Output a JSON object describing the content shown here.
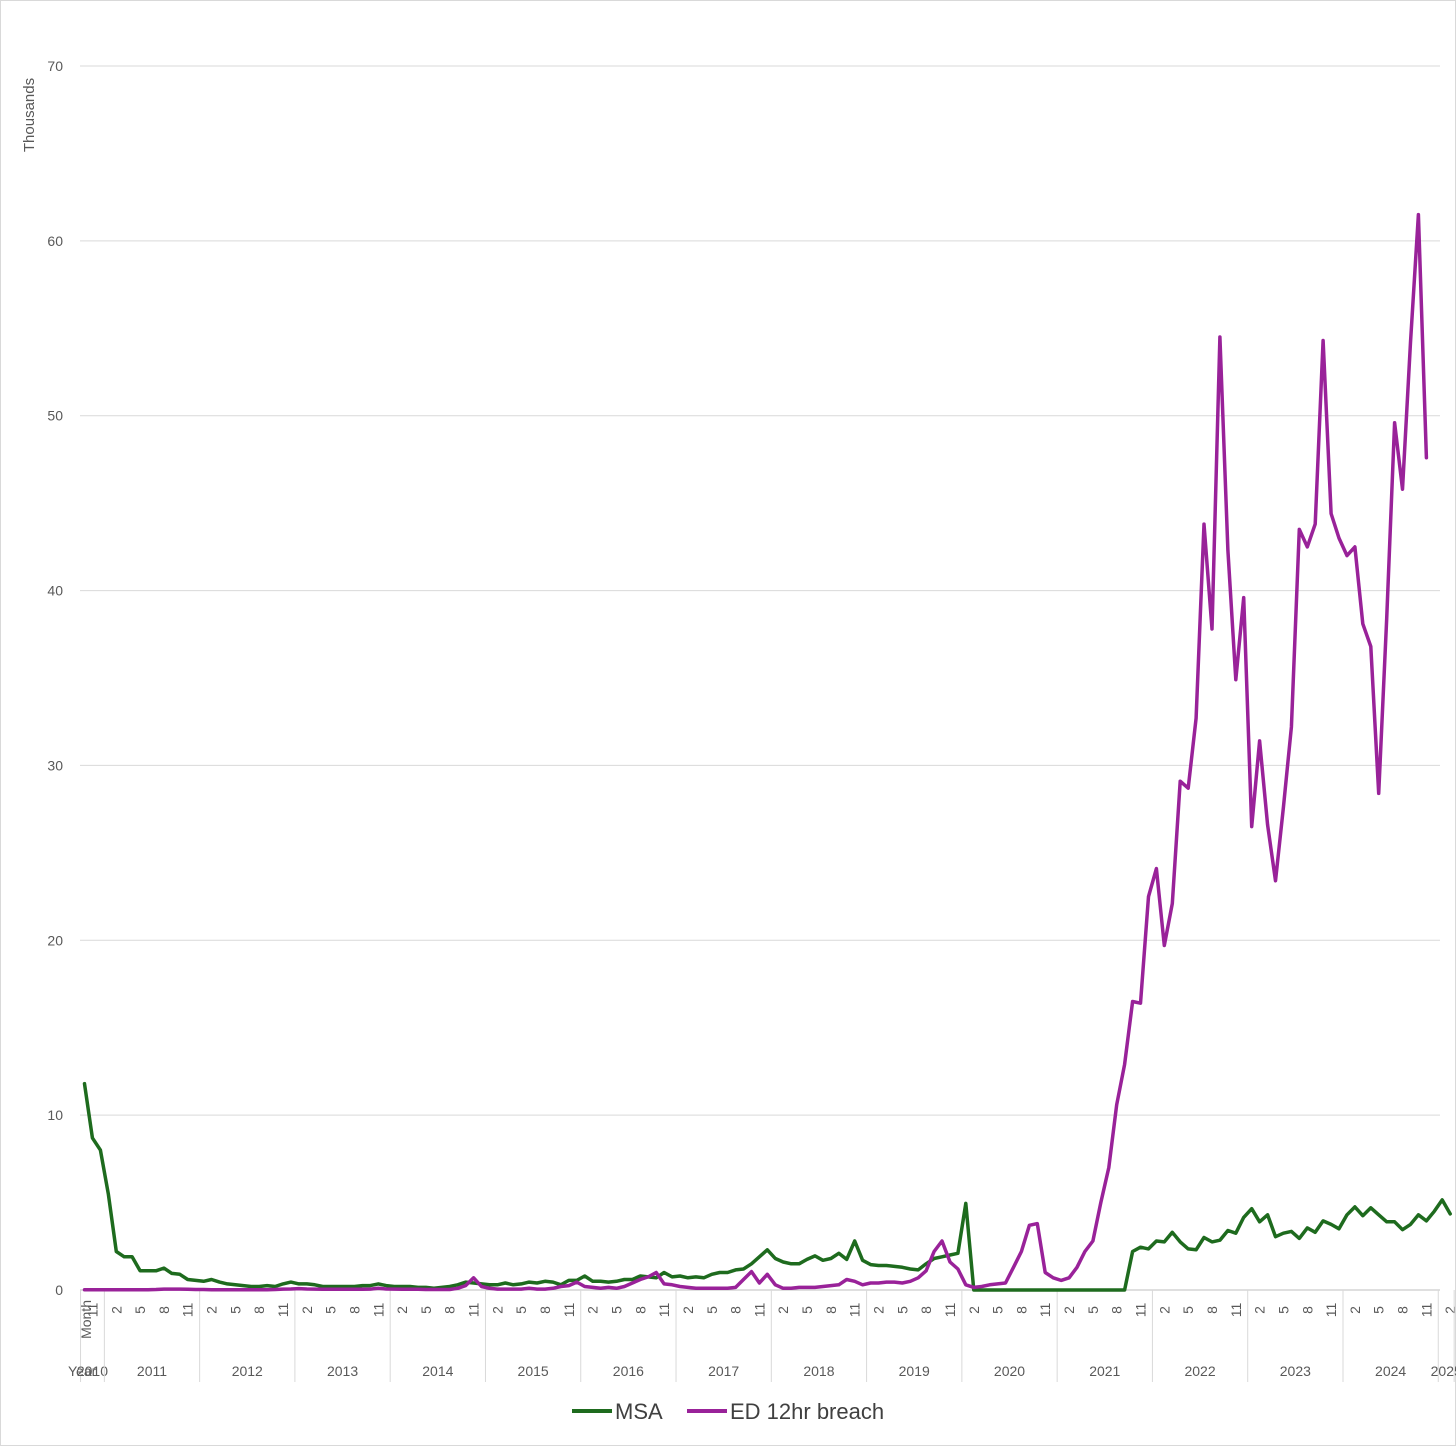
{
  "chart_data": {
    "type": "line",
    "ylabel": "Thousands",
    "ylim": [
      0,
      70
    ],
    "yticks": [
      0,
      10,
      20,
      30,
      40,
      50,
      60,
      70
    ],
    "x_axis": {
      "month_label": "Month",
      "year_label": "Year",
      "years": [
        "2010",
        "2011",
        "2012",
        "2013",
        "2014",
        "2015",
        "2016",
        "2017",
        "2018",
        "2019",
        "2020",
        "2021",
        "2022",
        "2023",
        "2024",
        "2025"
      ],
      "month_ticks": [
        "2",
        "5",
        "8",
        "11"
      ]
    },
    "x_start": "2010-10",
    "x_end": "2025-01",
    "grid": "horizontal",
    "legend_position": "bottom",
    "series": [
      {
        "name": "MSA",
        "color": "#1e6b1e",
        "values": [
          11.8,
          8.7,
          8.0,
          5.5,
          2.2,
          1.9,
          1.9,
          1.1,
          1.1,
          1.1,
          1.25,
          0.95,
          0.9,
          0.6,
          0.55,
          0.5,
          0.6,
          0.45,
          0.35,
          0.3,
          0.25,
          0.2,
          0.2,
          0.25,
          0.2,
          0.35,
          0.45,
          0.35,
          0.35,
          0.3,
          0.2,
          0.2,
          0.2,
          0.2,
          0.2,
          0.25,
          0.25,
          0.35,
          0.25,
          0.2,
          0.2,
          0.2,
          0.15,
          0.15,
          0.1,
          0.15,
          0.2,
          0.3,
          0.45,
          0.4,
          0.35,
          0.3,
          0.3,
          0.4,
          0.3,
          0.35,
          0.45,
          0.4,
          0.5,
          0.45,
          0.3,
          0.55,
          0.55,
          0.8,
          0.5,
          0.5,
          0.45,
          0.5,
          0.6,
          0.6,
          0.8,
          0.75,
          0.7,
          1.0,
          0.75,
          0.8,
          0.7,
          0.75,
          0.7,
          0.9,
          1.0,
          1.0,
          1.15,
          1.2,
          1.5,
          1.9,
          2.3,
          1.8,
          1.6,
          1.5,
          1.5,
          1.75,
          1.95,
          1.7,
          1.8,
          2.1,
          1.75,
          2.8,
          1.7,
          1.45,
          1.4,
          1.4,
          1.35,
          1.3,
          1.2,
          1.15,
          1.5,
          1.8,
          1.9,
          2.0,
          2.1,
          4.95,
          0,
          0,
          0,
          0,
          0,
          0,
          0,
          0,
          0,
          0,
          0,
          0,
          0,
          0,
          0,
          0,
          0,
          0,
          0,
          0,
          2.2,
          2.45,
          2.35,
          2.8,
          2.75,
          3.3,
          2.75,
          2.35,
          2.3,
          3.0,
          2.75,
          2.85,
          3.4,
          3.25,
          4.15,
          4.65,
          3.9,
          4.3,
          3.05,
          3.25,
          3.35,
          2.95,
          3.55,
          3.3,
          3.95,
          3.75,
          3.5,
          4.3,
          4.75,
          4.25,
          4.7,
          4.3,
          3.9,
          3.9,
          3.45,
          3.75,
          4.3,
          3.95,
          4.5,
          5.15,
          4.35
        ]
      },
      {
        "name": "ED 12hr breach",
        "color": "#992299",
        "values": [
          0.02,
          0.02,
          0.02,
          0.02,
          0.02,
          0.02,
          0.02,
          0.02,
          0.02,
          0.03,
          0.05,
          0.05,
          0.05,
          0.04,
          0.03,
          0.03,
          0.02,
          0.02,
          0.02,
          0.02,
          0.02,
          0.02,
          0.02,
          0.02,
          0.03,
          0.05,
          0.06,
          0.08,
          0.06,
          0.05,
          0.04,
          0.04,
          0.04,
          0.04,
          0.04,
          0.04,
          0.05,
          0.1,
          0.06,
          0.05,
          0.04,
          0.04,
          0.04,
          0.03,
          0.03,
          0.03,
          0.03,
          0.1,
          0.25,
          0.7,
          0.2,
          0.1,
          0.05,
          0.05,
          0.05,
          0.05,
          0.1,
          0.05,
          0.05,
          0.1,
          0.2,
          0.25,
          0.45,
          0.2,
          0.15,
          0.1,
          0.15,
          0.1,
          0.2,
          0.4,
          0.6,
          0.75,
          1.0,
          0.35,
          0.3,
          0.2,
          0.15,
          0.1,
          0.1,
          0.1,
          0.1,
          0.1,
          0.15,
          0.6,
          1.05,
          0.4,
          0.9,
          0.3,
          0.1,
          0.1,
          0.15,
          0.15,
          0.15,
          0.2,
          0.25,
          0.3,
          0.6,
          0.5,
          0.3,
          0.4,
          0.4,
          0.45,
          0.45,
          0.4,
          0.5,
          0.7,
          1.1,
          2.2,
          2.8,
          1.6,
          1.2,
          0.3,
          0.15,
          0.2,
          0.3,
          0.35,
          0.4,
          1.3,
          2.2,
          3.7,
          3.8,
          1.0,
          0.7,
          0.55,
          0.7,
          1.3,
          2.2,
          2.8,
          5.0,
          7.0,
          10.6,
          12.9,
          16.5,
          16.4,
          22.5,
          24.1,
          19.7,
          22.1,
          29.1,
          28.7,
          32.7,
          43.8,
          37.8,
          54.5,
          42.3,
          34.9,
          39.6,
          26.5,
          31.4,
          26.6,
          23.4,
          27.6,
          32.2,
          43.5,
          42.5,
          43.8,
          54.3,
          44.4,
          43.0,
          42.0,
          42.5,
          38.1,
          36.8,
          28.4,
          38.4,
          49.6,
          45.8,
          54.2,
          61.5,
          47.6
        ]
      }
    ]
  }
}
